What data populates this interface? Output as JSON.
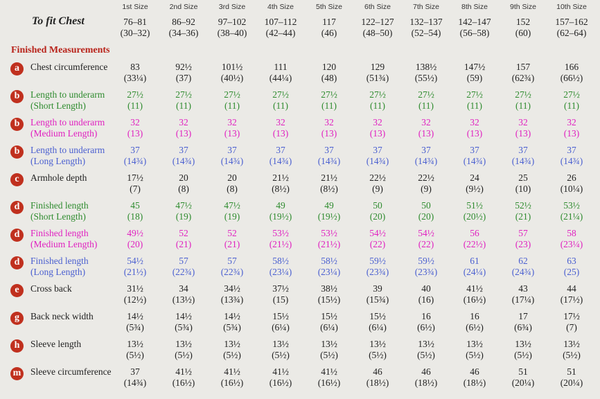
{
  "header": {
    "sizes": [
      "1st Size",
      "2nd Size",
      "3rd Size",
      "4th Size",
      "5th Size",
      "6th Size",
      "7th Size",
      "8th Size",
      "9th Size",
      "10th Size"
    ],
    "chest_label": "To fit Chest",
    "chest": [
      [
        "76–81",
        "(30–32)"
      ],
      [
        "86–92",
        "(34–36)"
      ],
      [
        "97–102",
        "(38–40)"
      ],
      [
        "107–112",
        "(42–44)"
      ],
      [
        "117",
        "(46)"
      ],
      [
        "122–127",
        "(48–50)"
      ],
      [
        "132–137",
        "(52–54)"
      ],
      [
        "142–147",
        "(56–58)"
      ],
      [
        "152",
        "(60)"
      ],
      [
        "157–162",
        "(62–64)"
      ]
    ]
  },
  "section": "Finished Measurements",
  "rows": [
    {
      "badge": "a",
      "label": [
        "Chest circumference"
      ],
      "color": "#222222",
      "cells": [
        [
          "83",
          "(33¼)"
        ],
        [
          "92½",
          "(37)"
        ],
        [
          "101½",
          "(40½)"
        ],
        [
          "111",
          "(44¼)"
        ],
        [
          "120",
          "(48)"
        ],
        [
          "129",
          "(51¾)"
        ],
        [
          "138½",
          "(55½)"
        ],
        [
          "147½",
          "(59)"
        ],
        [
          "157",
          "(62¾)"
        ],
        [
          "166",
          "(66½)"
        ]
      ]
    },
    {
      "badge": "b",
      "label": [
        "Length to underarm",
        "(Short Length)"
      ],
      "color": "#2e8b2e",
      "cells": [
        [
          "27½",
          "(11)"
        ],
        [
          "27½",
          "(11)"
        ],
        [
          "27½",
          "(11)"
        ],
        [
          "27½",
          "(11)"
        ],
        [
          "27½",
          "(11)"
        ],
        [
          "27½",
          "(11)"
        ],
        [
          "27½",
          "(11)"
        ],
        [
          "27½",
          "(11)"
        ],
        [
          "27½",
          "(11)"
        ],
        [
          "27½",
          "(11)"
        ]
      ]
    },
    {
      "badge": "b",
      "label": [
        "Length to underarm",
        "(Medium Length)"
      ],
      "color": "#e020c0",
      "cells": [
        [
          "32",
          "(13)"
        ],
        [
          "32",
          "(13)"
        ],
        [
          "32",
          "(13)"
        ],
        [
          "32",
          "(13)"
        ],
        [
          "32",
          "(13)"
        ],
        [
          "32",
          "(13)"
        ],
        [
          "32",
          "(13)"
        ],
        [
          "32",
          "(13)"
        ],
        [
          "32",
          "(13)"
        ],
        [
          "32",
          "(13)"
        ]
      ]
    },
    {
      "badge": "b",
      "label": [
        "Length to underarm",
        "(Long Length)"
      ],
      "color": "#4a5fd0",
      "cells": [
        [
          "37",
          "(14¾)"
        ],
        [
          "37",
          "(14¾)"
        ],
        [
          "37",
          "(14¾)"
        ],
        [
          "37",
          "(14¾)"
        ],
        [
          "37",
          "(14¾)"
        ],
        [
          "37",
          "(14¾)"
        ],
        [
          "37",
          "(14¾)"
        ],
        [
          "37",
          "(14¾)"
        ],
        [
          "37",
          "(14¾)"
        ],
        [
          "37",
          "(14¾)"
        ]
      ]
    },
    {
      "badge": "c",
      "label": [
        "Armhole depth"
      ],
      "color": "#222222",
      "cells": [
        [
          "17½",
          "(7)"
        ],
        [
          "20",
          "(8)"
        ],
        [
          "20",
          "(8)"
        ],
        [
          "21½",
          "(8½)"
        ],
        [
          "21½",
          "(8½)"
        ],
        [
          "22½",
          "(9)"
        ],
        [
          "22½",
          "(9)"
        ],
        [
          "24",
          "(9½)"
        ],
        [
          "25",
          "(10)"
        ],
        [
          "26",
          "(10¼)"
        ]
      ]
    },
    {
      "badge": "d",
      "label": [
        "Finished length",
        "(Short Length)"
      ],
      "color": "#2e8b2e",
      "cells": [
        [
          "45",
          "(18)"
        ],
        [
          "47½",
          "(19)"
        ],
        [
          "47½",
          "(19)"
        ],
        [
          "49",
          "(19½)"
        ],
        [
          "49",
          "(19½)"
        ],
        [
          "50",
          "(20)"
        ],
        [
          "50",
          "(20)"
        ],
        [
          "51½",
          "(20½)"
        ],
        [
          "52½",
          "(21)"
        ],
        [
          "53½",
          "(21¼)"
        ]
      ]
    },
    {
      "badge": "d",
      "label": [
        "Finished length",
        "(Medium Length)"
      ],
      "color": "#e020c0",
      "cells": [
        [
          "49½",
          "(20)"
        ],
        [
          "52",
          "(21)"
        ],
        [
          "52",
          "(21)"
        ],
        [
          "53½",
          "(21½)"
        ],
        [
          "53½",
          "(21½)"
        ],
        [
          "54½",
          "(22)"
        ],
        [
          "54½",
          "(22)"
        ],
        [
          "56",
          "(22½)"
        ],
        [
          "57",
          "(23)"
        ],
        [
          "58",
          "(23¼)"
        ]
      ]
    },
    {
      "badge": "d",
      "label": [
        "Finished length",
        "(Long Length)"
      ],
      "color": "#4a5fd0",
      "cells": [
        [
          "54½",
          "(21½)"
        ],
        [
          "57",
          "(22¾)"
        ],
        [
          "57",
          "(22¾)"
        ],
        [
          "58½",
          "(23¼)"
        ],
        [
          "58½",
          "(23¼)"
        ],
        [
          "59½",
          "(23¾)"
        ],
        [
          "59½",
          "(23¾)"
        ],
        [
          "61",
          "(24¼)"
        ],
        [
          "62",
          "(24¾)"
        ],
        [
          "63",
          "(25)"
        ]
      ]
    },
    {
      "badge": "e",
      "label": [
        "Cross back"
      ],
      "color": "#222222",
      "cells": [
        [
          "31½",
          "(12½)"
        ],
        [
          "34",
          "(13½)"
        ],
        [
          "34½",
          "(13¾)"
        ],
        [
          "37½",
          "(15)"
        ],
        [
          "38½",
          "(15½)"
        ],
        [
          "39",
          "(15¾)"
        ],
        [
          "40",
          "(16)"
        ],
        [
          "41½",
          "(16½)"
        ],
        [
          "43",
          "(17¼)"
        ],
        [
          "44",
          "(17½)"
        ]
      ]
    },
    {
      "badge": "g",
      "label": [
        "Back neck width"
      ],
      "color": "#222222",
      "cells": [
        [
          "14½",
          "(5¾)"
        ],
        [
          "14½",
          "(5¾)"
        ],
        [
          "14½",
          "(5¾)"
        ],
        [
          "15½",
          "(6¼)"
        ],
        [
          "15½",
          "(6¼)"
        ],
        [
          "15½",
          "(6¼)"
        ],
        [
          "16",
          "(6½)"
        ],
        [
          "16",
          "(6½)"
        ],
        [
          "17",
          "(6¾)"
        ],
        [
          "17½",
          "(7)"
        ]
      ]
    },
    {
      "badge": "h",
      "label": [
        "Sleeve length"
      ],
      "color": "#222222",
      "cells": [
        [
          "13½",
          "(5½)"
        ],
        [
          "13½",
          "(5½)"
        ],
        [
          "13½",
          "(5½)"
        ],
        [
          "13½",
          "(5½)"
        ],
        [
          "13½",
          "(5½)"
        ],
        [
          "13½",
          "(5½)"
        ],
        [
          "13½",
          "(5½)"
        ],
        [
          "13½",
          "(5½)"
        ],
        [
          "13½",
          "(5½)"
        ],
        [
          "13½",
          "(5½)"
        ]
      ]
    },
    {
      "badge": "m",
      "label": [
        "Sleeve circumference"
      ],
      "color": "#222222",
      "cells": [
        [
          "37",
          "(14¾)"
        ],
        [
          "41½",
          "(16½)"
        ],
        [
          "41½",
          "(16½)"
        ],
        [
          "41½",
          "(16½)"
        ],
        [
          "41½",
          "(16½)"
        ],
        [
          "46",
          "(18½)"
        ],
        [
          "46",
          "(18½)"
        ],
        [
          "46",
          "(18½)"
        ],
        [
          "51",
          "(20¼)"
        ],
        [
          "51",
          "(20¼)"
        ]
      ]
    }
  ]
}
